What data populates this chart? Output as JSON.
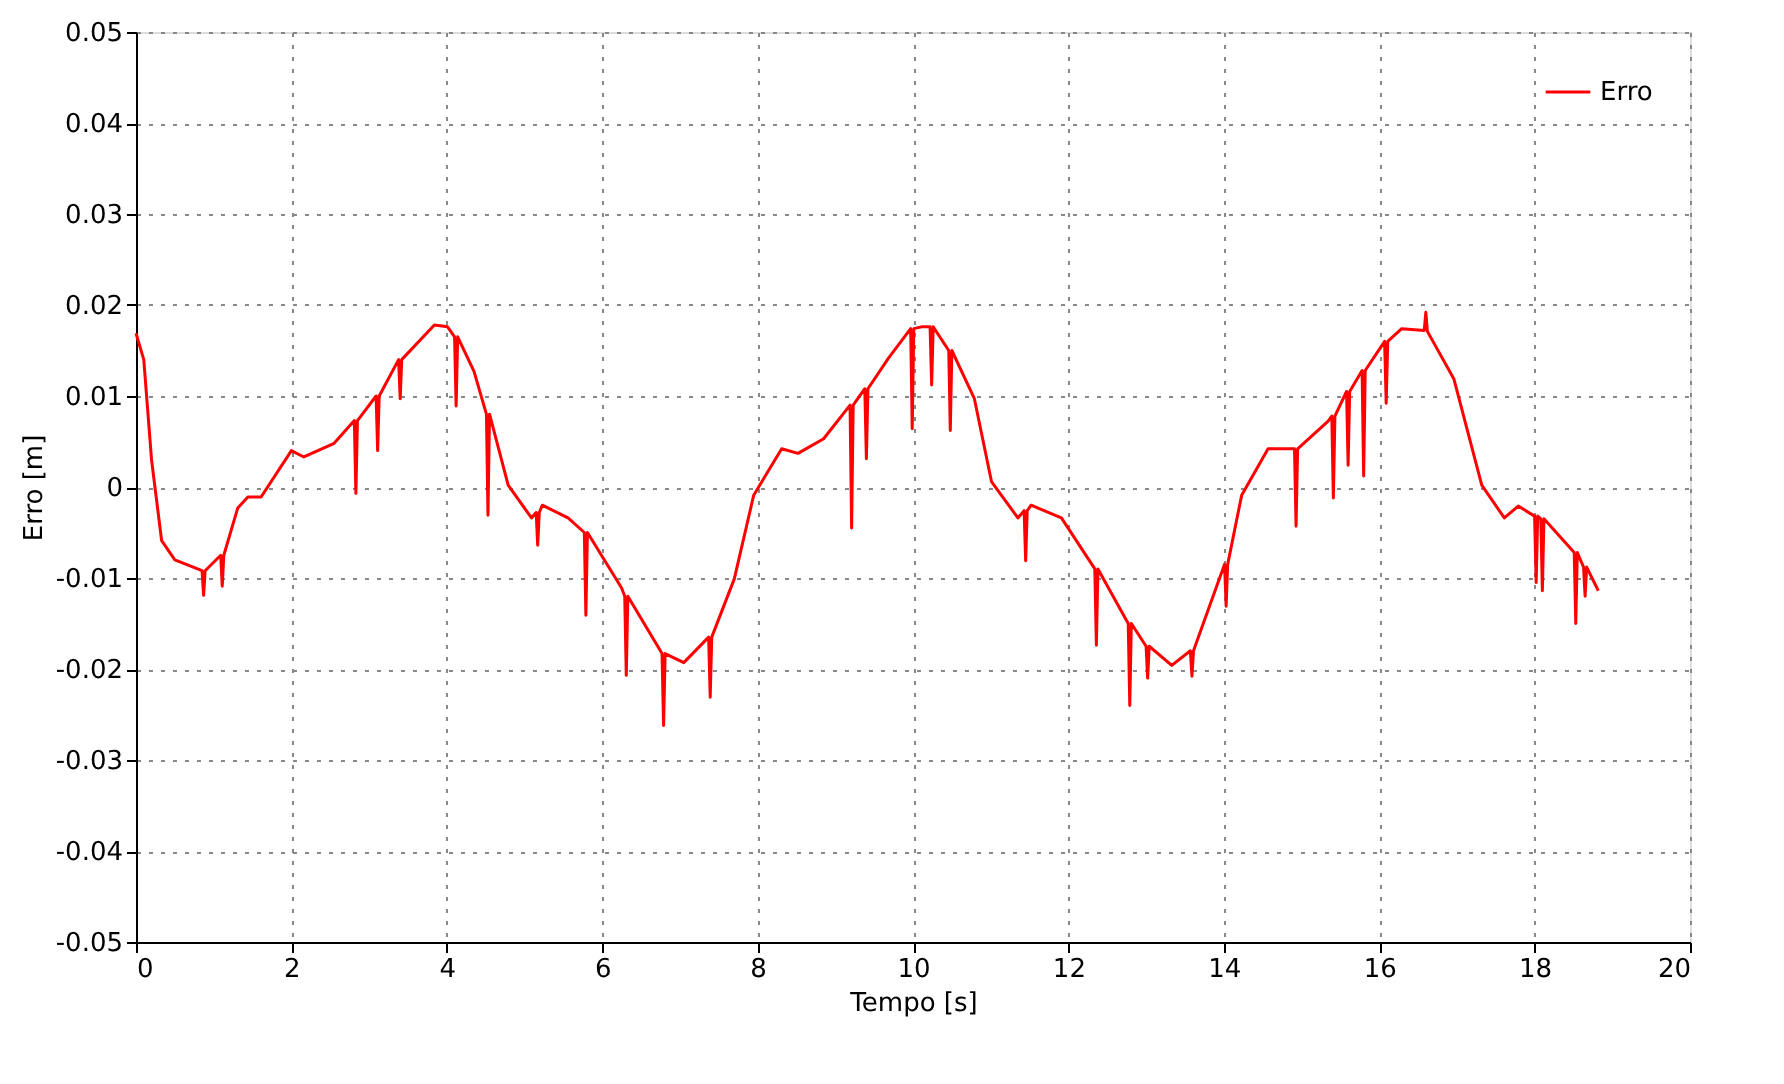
{
  "chart_data": {
    "type": "line",
    "xlabel": "Tempo [s]",
    "ylabel": "Erro [m]",
    "xlim": [
      0,
      20
    ],
    "xticks": [
      0,
      2,
      4,
      6,
      8,
      10,
      12,
      14,
      16,
      18,
      20
    ],
    "ylim": [
      -0.05,
      0.05
    ],
    "yticks": [
      -0.05,
      -0.04,
      -0.03,
      -0.02,
      -0.01,
      0,
      0.01,
      0.02,
      0.03,
      0.04,
      0.05
    ],
    "grid": true,
    "legend": "top right",
    "marker": "none",
    "line_style": "solid",
    "series": [
      {
        "name": "Erro",
        "color": "#ff0000",
        "x": [
          0,
          0.1,
          0.2,
          0.33,
          0.5,
          0.85,
          0.87,
          0.89,
          1.09,
          1.11,
          1.13,
          1.31,
          1.44,
          1.61,
          2.0,
          2.16,
          2.55,
          2.81,
          2.83,
          2.85,
          3.09,
          3.11,
          3.13,
          3.38,
          3.4,
          3.42,
          3.84,
          4.01,
          4.1,
          4.12,
          4.14,
          4.35,
          4.51,
          4.53,
          4.55,
          4.79,
          5.09,
          5.15,
          5.17,
          5.19,
          5.23,
          5.56,
          5.77,
          5.79,
          5.81,
          6.25,
          6.29,
          6.31,
          6.33,
          6.77,
          6.79,
          6.81,
          7.05,
          7.37,
          7.39,
          7.41,
          7.7,
          7.95,
          8.31,
          8.52,
          8.85,
          9.19,
          9.21,
          9.23,
          9.38,
          9.4,
          9.42,
          9.68,
          9.97,
          9.99,
          10.01,
          10.11,
          10.22,
          10.24,
          10.26,
          10.46,
          10.48,
          10.5,
          10.79,
          11.01,
          11.35,
          11.43,
          11.45,
          11.47,
          11.52,
          11.91,
          12.34,
          12.36,
          12.38,
          12.77,
          12.79,
          12.81,
          13.0,
          13.02,
          13.04,
          13.33,
          13.57,
          13.59,
          13.61,
          14.01,
          14.03,
          14.05,
          14.23,
          14.57,
          14.91,
          14.93,
          14.95,
          15.34,
          15.39,
          15.41,
          15.43,
          15.58,
          15.6,
          15.62,
          15.78,
          15.8,
          15.82,
          16.07,
          16.09,
          16.11,
          16.29,
          16.58,
          16.6,
          16.62,
          16.96,
          17.32,
          17.61,
          17.79,
          18.0,
          18.02,
          18.04,
          18.08,
          18.1,
          18.12,
          18.51,
          18.53,
          18.55,
          18.63,
          18.65,
          18.67,
          18.82
        ],
        "values": [
          0.0169,
          0.014,
          0.003,
          -0.0059,
          -0.008,
          -0.0092,
          -0.0119,
          -0.0092,
          -0.0075,
          -0.0109,
          -0.0075,
          -0.0023,
          -0.0011,
          -0.0011,
          0.004,
          0.0033,
          0.0048,
          0.0073,
          -0.0007,
          0.0073,
          0.01,
          0.004,
          0.01,
          0.014,
          0.0097,
          0.014,
          0.0178,
          0.0176,
          0.0165,
          0.0089,
          0.0165,
          0.0127,
          0.008,
          -0.0031,
          0.008,
          0.0002,
          -0.0034,
          -0.0028,
          -0.0064,
          -0.0028,
          -0.002,
          -0.0034,
          -0.005,
          -0.0141,
          -0.005,
          -0.0111,
          -0.012,
          -0.0207,
          -0.012,
          -0.0183,
          -0.0262,
          -0.0183,
          -0.0193,
          -0.0165,
          -0.0231,
          -0.0165,
          -0.0101,
          -0.0009,
          0.0042,
          0.0037,
          0.0053,
          0.009,
          -0.0045,
          0.009,
          0.0108,
          0.0031,
          0.0108,
          0.0141,
          0.0174,
          0.0064,
          0.0174,
          0.0176,
          0.0176,
          0.0112,
          0.0176,
          0.015,
          0.0062,
          0.015,
          0.0097,
          0.0006,
          -0.0034,
          -0.0026,
          -0.0081,
          -0.0026,
          -0.002,
          -0.0034,
          -0.009,
          -0.0174,
          -0.009,
          -0.015,
          -0.024,
          -0.015,
          -0.0175,
          -0.021,
          -0.0175,
          -0.0196,
          -0.018,
          -0.0208,
          -0.018,
          -0.0085,
          -0.0131,
          -0.0085,
          -0.0009,
          0.0042,
          0.0042,
          -0.0043,
          0.0042,
          0.0072,
          0.0078,
          -0.0012,
          0.0078,
          0.0105,
          0.0024,
          0.0105,
          0.0128,
          0.0012,
          0.0128,
          0.016,
          0.0092,
          0.016,
          0.0174,
          0.0172,
          0.0192,
          0.0171,
          0.0119,
          0.0002,
          -0.0034,
          -0.0021,
          -0.0032,
          -0.0105,
          -0.0032,
          -0.0035,
          -0.0114,
          -0.0035,
          -0.0072,
          -0.015,
          -0.0072,
          -0.0088,
          -0.012,
          -0.0088,
          -0.0114
        ]
      }
    ]
  }
}
